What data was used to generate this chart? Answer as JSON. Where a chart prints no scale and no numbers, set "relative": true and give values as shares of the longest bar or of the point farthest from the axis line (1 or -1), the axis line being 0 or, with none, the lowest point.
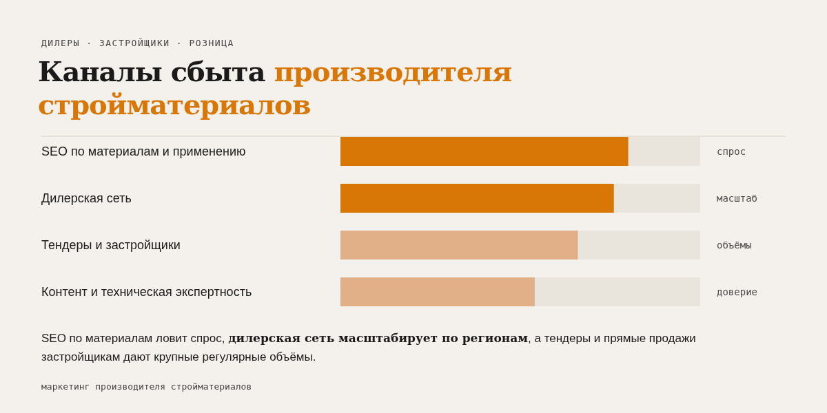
{
  "chart_data": {
    "type": "bar",
    "orientation": "horizontal",
    "relative": true,
    "subtitle": "ДИЛЕРЫ · ЗАСТРОЙЩИКИ · РОЗНИЦА",
    "title": "Каналы сбыта производителя стройматериалов",
    "categories": [
      "SEO по материалам и применению",
      "Дилерская сеть",
      "Тендеры и застройщики",
      "Контент и техническая экспертность"
    ],
    "values": [
      1,
      0.95,
      0.825,
      0.675
    ],
    "colors": [
      "#d97706",
      "#d97706",
      "#e2b088",
      "#e2b088"
    ],
    "annotations": [
      "SEO по материалам ловит спрос, ",
      "дилерская сеть масштабирует по регионам",
      ", а тендеры и прямые продажи застройщикам дают крупные регулярные объёмы.",
      "маркетинг производителя стройматериалов",
      "спрос",
      "масштаб",
      "объёмы",
      "доверие"
    ]
  }
}
